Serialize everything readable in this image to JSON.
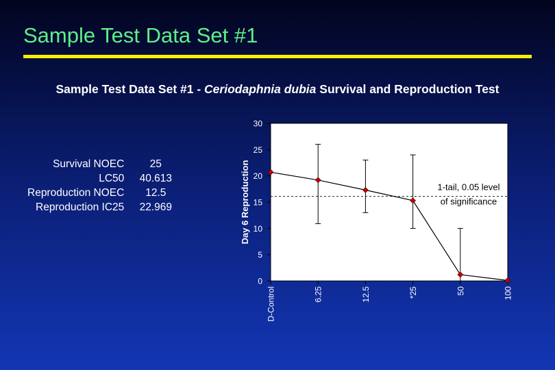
{
  "slide": {
    "title": "Sample Test Data Set #1"
  },
  "chart_title": {
    "prefix": "Sample Test Data Set #1 - ",
    "species": "Ceriodaphnia dubia",
    "suffix": " Survival and Reproduction Test"
  },
  "stats": [
    {
      "label": "Survival NOEC",
      "value": "25"
    },
    {
      "label": "LC50",
      "value": "40.613"
    },
    {
      "label": "Reproduction NOEC",
      "value": "12.5"
    },
    {
      "label": "Reproduction IC25",
      "value": "22.969"
    }
  ],
  "colors": {
    "title": "#5cf08a",
    "rule": "#f5f000",
    "marker": "#c00000"
  },
  "chart_data": {
    "type": "line",
    "categories": [
      "D-Control",
      "6.25",
      "12.5",
      "*25",
      "50",
      "100"
    ],
    "values": [
      20.7,
      19.2,
      17.3,
      15.3,
      1.2,
      0.1
    ],
    "error_bars": [
      null,
      [
        10.9,
        26.0
      ],
      [
        13.0,
        23.0
      ],
      [
        10.0,
        24.0
      ],
      [
        0,
        10.0
      ],
      null
    ],
    "ylabel": "Day 6 Reproduction",
    "xlabel": "",
    "ylim": [
      0,
      30
    ],
    "yticks": [
      0,
      5,
      10,
      15,
      20,
      25,
      30
    ],
    "reference_line": {
      "value": 16.1,
      "label_line1": "1-tail, 0.05 level",
      "label_line2": "of significance"
    }
  }
}
